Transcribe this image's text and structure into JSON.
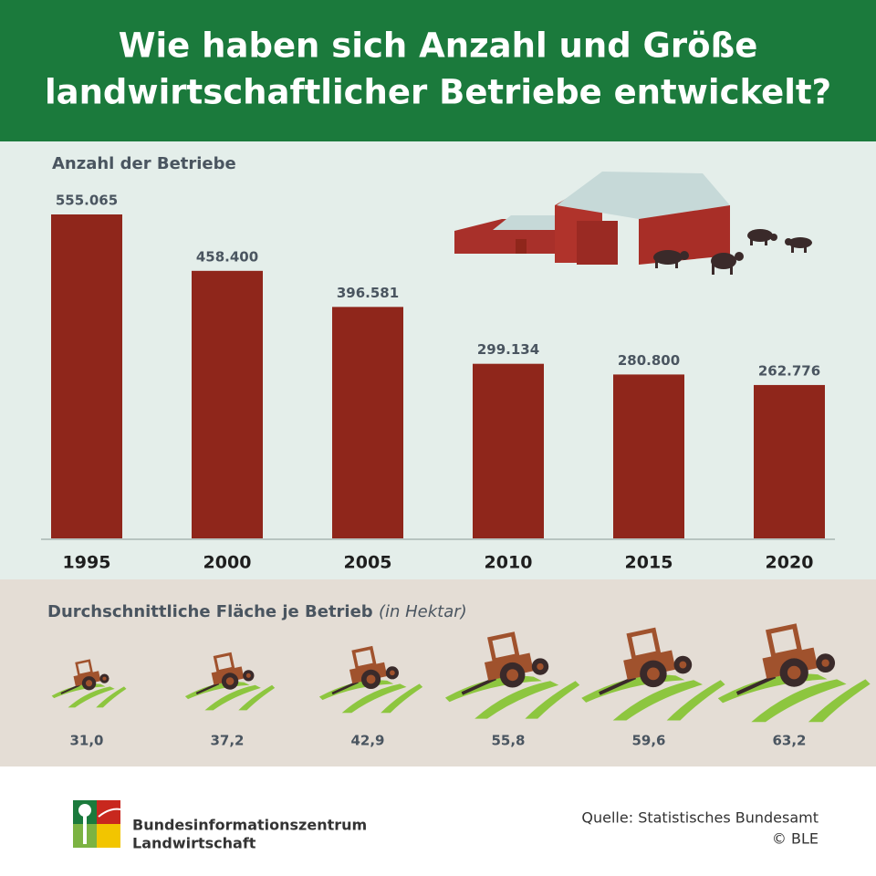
{
  "header": {
    "title_lines": [
      "Wie haben sich Anzahl und Größe",
      "landwirtschaftlicher Betriebe entwickelt?"
    ]
  },
  "chart_data": [
    {
      "type": "bar",
      "title": "Anzahl der Betriebe",
      "categories": [
        "1995",
        "2000",
        "2005",
        "2010",
        "2015",
        "2020"
      ],
      "values": [
        555065,
        458400,
        396581,
        299134,
        280800,
        262776
      ],
      "value_labels": [
        "555.065",
        "458.400",
        "396.581",
        "299.134",
        "280.800",
        "262.776"
      ],
      "color": "#8f261b"
    },
    {
      "type": "pictogram",
      "title": "Durchschnittliche Fläche je Betrieb",
      "subtitle": "(in Hektar)",
      "values": [
        31.0,
        37.2,
        42.9,
        55.8,
        59.6,
        63.2
      ],
      "value_labels": [
        "31,0",
        "37,2",
        "42,9",
        "55,8",
        "59,6",
        "63,2"
      ],
      "color": "#a0522d"
    }
  ],
  "footer": {
    "org_lines": [
      "Bundesinformationszentrum",
      "Landwirtschaft"
    ],
    "source": "Quelle: Statistisches Bundesamt",
    "copyright": "© BLE"
  }
}
